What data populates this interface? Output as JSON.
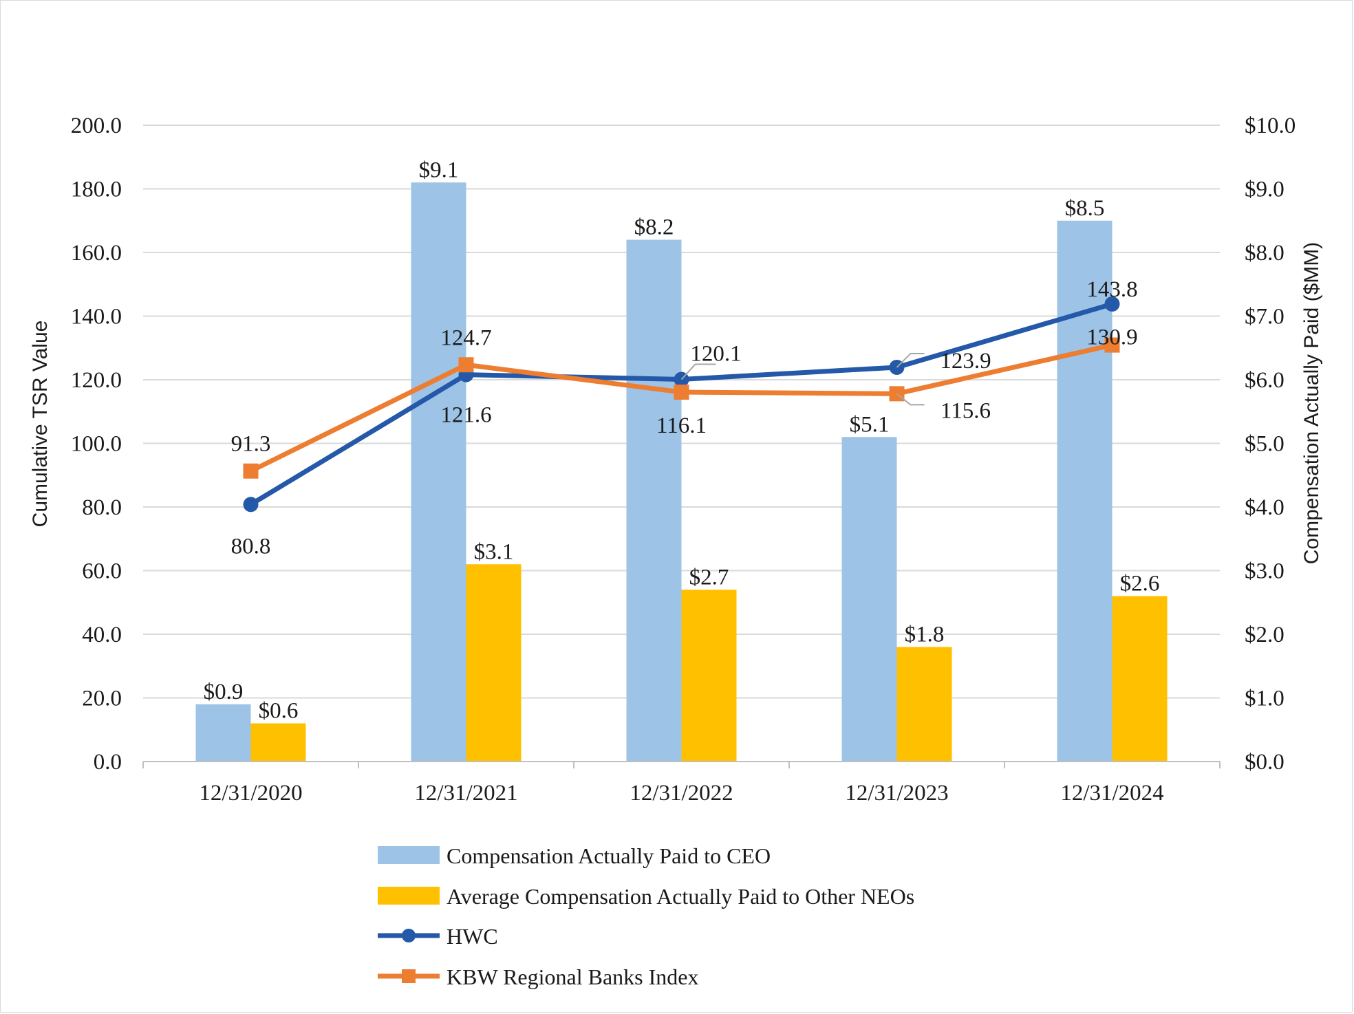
{
  "chart_data": {
    "type": "bar",
    "categories": [
      "12/31/2020",
      "12/31/2021",
      "12/31/2022",
      "12/31/2023",
      "12/31/2024"
    ],
    "left_axis": {
      "label": "Cumulative TSR Value",
      "range": [
        0,
        200
      ],
      "ticks": [
        "0.0",
        "20.0",
        "40.0",
        "60.0",
        "80.0",
        "100.0",
        "120.0",
        "140.0",
        "160.0",
        "180.0",
        "200.0"
      ]
    },
    "right_axis": {
      "label": "Compensation Actually Paid ($MM)",
      "range": [
        0,
        10
      ],
      "ticks": [
        "$0.0",
        "$1.0",
        "$2.0",
        "$3.0",
        "$4.0",
        "$5.0",
        "$6.0",
        "$7.0",
        "$8.0",
        "$9.0",
        "$10.0"
      ]
    },
    "grid": true,
    "legend_position": "bottom",
    "series": [
      {
        "name": "Compensation Actually Paid to CEO",
        "kind": "bar",
        "axis": "right",
        "color": "#9dc3e6",
        "values": [
          0.9,
          9.1,
          8.2,
          5.1,
          8.5
        ],
        "labels": [
          "$0.9",
          "$9.1",
          "$8.2",
          "$5.1",
          "$8.5"
        ]
      },
      {
        "name": "Average Compensation Actually Paid to Other NEOs",
        "kind": "bar",
        "axis": "right",
        "color": "#ffc000",
        "values": [
          0.6,
          3.1,
          2.7,
          1.8,
          2.6
        ],
        "labels": [
          "$0.6",
          "$3.1",
          "$2.7",
          "$1.8",
          "$2.6"
        ]
      },
      {
        "name": "HWC",
        "kind": "line",
        "axis": "left",
        "marker": "circle",
        "color": "#2458a8",
        "values": [
          80.8,
          121.6,
          120.1,
          123.9,
          143.8
        ],
        "labels": [
          "80.8",
          "121.6",
          "120.1",
          "123.9",
          "143.8"
        ]
      },
      {
        "name": "KBW Regional Banks Index",
        "kind": "line",
        "axis": "left",
        "marker": "square",
        "color": "#ed7d31",
        "values": [
          91.3,
          124.7,
          116.1,
          115.6,
          130.9
        ],
        "labels": [
          "91.3",
          "124.7",
          "116.1",
          "115.6",
          "130.9"
        ]
      }
    ]
  }
}
